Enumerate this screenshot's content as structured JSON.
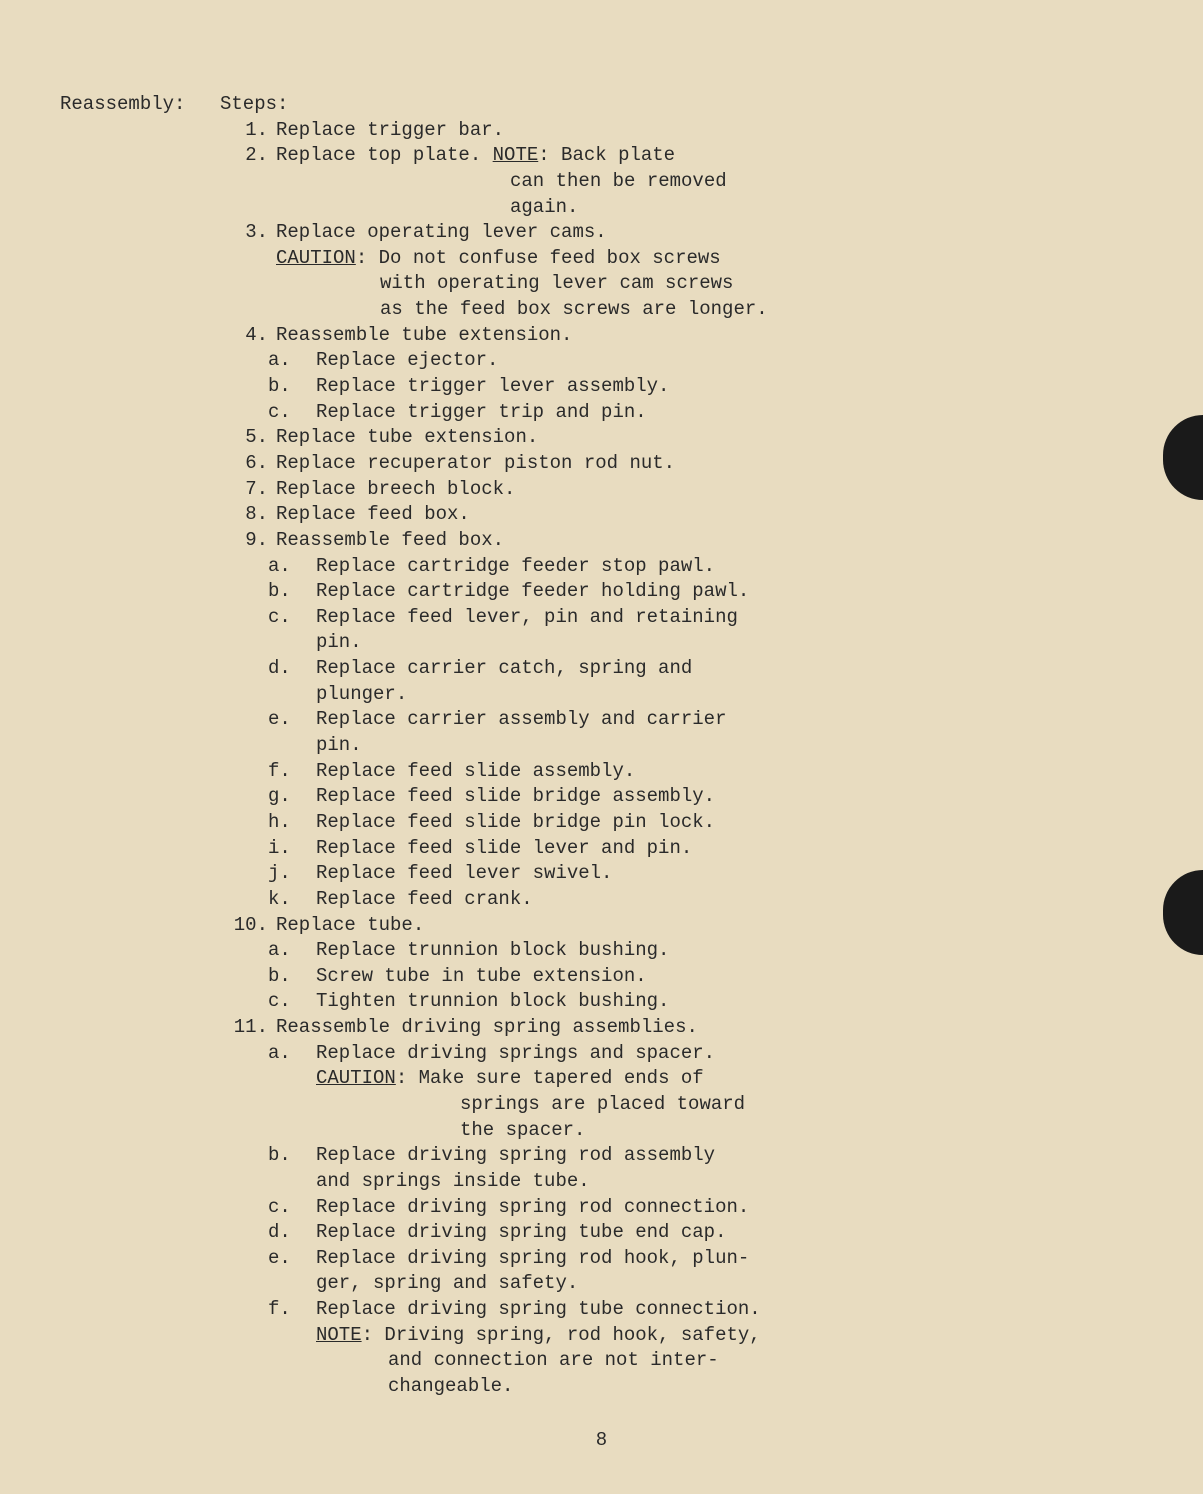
{
  "section_label": "Reassembly:",
  "steps_label": "Steps:",
  "page_number": "8",
  "steps": {
    "s1": {
      "num": "1.",
      "text": "Replace trigger bar."
    },
    "s2": {
      "num": "2.",
      "text": "Replace top plate.  ",
      "note_label": "NOTE",
      "note_after": ":  Back plate",
      "note_l2": "can then be removed",
      "note_l3": "again."
    },
    "s3": {
      "num": "3.",
      "text": "Replace operating lever cams.",
      "caution_label": "CAUTION",
      "caution_l1": ":  Do not confuse feed box screws",
      "caution_l2": "with operating lever cam screws",
      "caution_l3": "as the feed box screws are longer."
    },
    "s4": {
      "num": "4.",
      "text": "Reassemble tube extension.",
      "a": {
        "l": "a.",
        "t": "Replace ejector."
      },
      "b": {
        "l": "b.",
        "t": "Replace trigger lever assembly."
      },
      "c": {
        "l": "c.",
        "t": "Replace trigger trip and pin."
      }
    },
    "s5": {
      "num": "5.",
      "text": "Replace tube extension."
    },
    "s6": {
      "num": "6.",
      "text": "Replace recuperator piston rod nut."
    },
    "s7": {
      "num": "7.",
      "text": "Replace breech block."
    },
    "s8": {
      "num": "8.",
      "text": "Replace feed box."
    },
    "s9": {
      "num": "9.",
      "text": "Reassemble feed box.",
      "a": {
        "l": "a.",
        "t": "Replace cartridge feeder stop pawl."
      },
      "b": {
        "l": "b.",
        "t": "Replace cartridge feeder holding pawl."
      },
      "c": {
        "l": "c.",
        "t": "Replace feed lever, pin and retaining",
        "t2": "pin."
      },
      "d": {
        "l": "d.",
        "t": "Replace carrier catch, spring and",
        "t2": "plunger."
      },
      "e": {
        "l": "e.",
        "t": "Replace carrier assembly and carrier",
        "t2": "pin."
      },
      "f": {
        "l": "f.",
        "t": "Replace feed slide assembly."
      },
      "g": {
        "l": "g.",
        "t": "Replace feed slide bridge assembly."
      },
      "h": {
        "l": "h.",
        "t": "Replace feed slide bridge pin lock."
      },
      "i": {
        "l": "i.",
        "t": "Replace feed slide lever and pin."
      },
      "j": {
        "l": "j.",
        "t": "Replace feed lever swivel."
      },
      "k": {
        "l": "k.",
        "t": "Replace feed crank."
      }
    },
    "s10": {
      "num": "10.",
      "text": "Replace tube.",
      "a": {
        "l": "a.",
        "t": "Replace trunnion block bushing."
      },
      "b": {
        "l": "b.",
        "t": "Screw tube in tube extension."
      },
      "c": {
        "l": "c.",
        "t": "Tighten trunnion block bushing."
      }
    },
    "s11": {
      "num": "11.",
      "text": "Reassemble driving spring assemblies.",
      "a": {
        "l": "a.",
        "t": "Replace driving springs and spacer.",
        "caution_label": "CAUTION",
        "caution_l1": ":  Make sure tapered ends of",
        "caution_l2": "springs are placed toward",
        "caution_l3": "the spacer."
      },
      "b": {
        "l": "b.",
        "t": "Replace driving spring rod assembly",
        "t2": "and springs inside tube."
      },
      "c": {
        "l": "c.",
        "t": "Replace driving spring rod connection."
      },
      "d": {
        "l": "d.",
        "t": "Replace driving spring tube end cap."
      },
      "e": {
        "l": "e.",
        "t": "Replace driving spring rod hook, plun-",
        "t2": "ger, spring and safety."
      },
      "f": {
        "l": "f.",
        "t": "Replace driving spring tube connection.",
        "note_label": "NOTE",
        "note_l1": ":  Driving spring, rod hook, safety,",
        "note_l2": "and connection are not inter-",
        "note_l3": "changeable."
      }
    }
  }
}
